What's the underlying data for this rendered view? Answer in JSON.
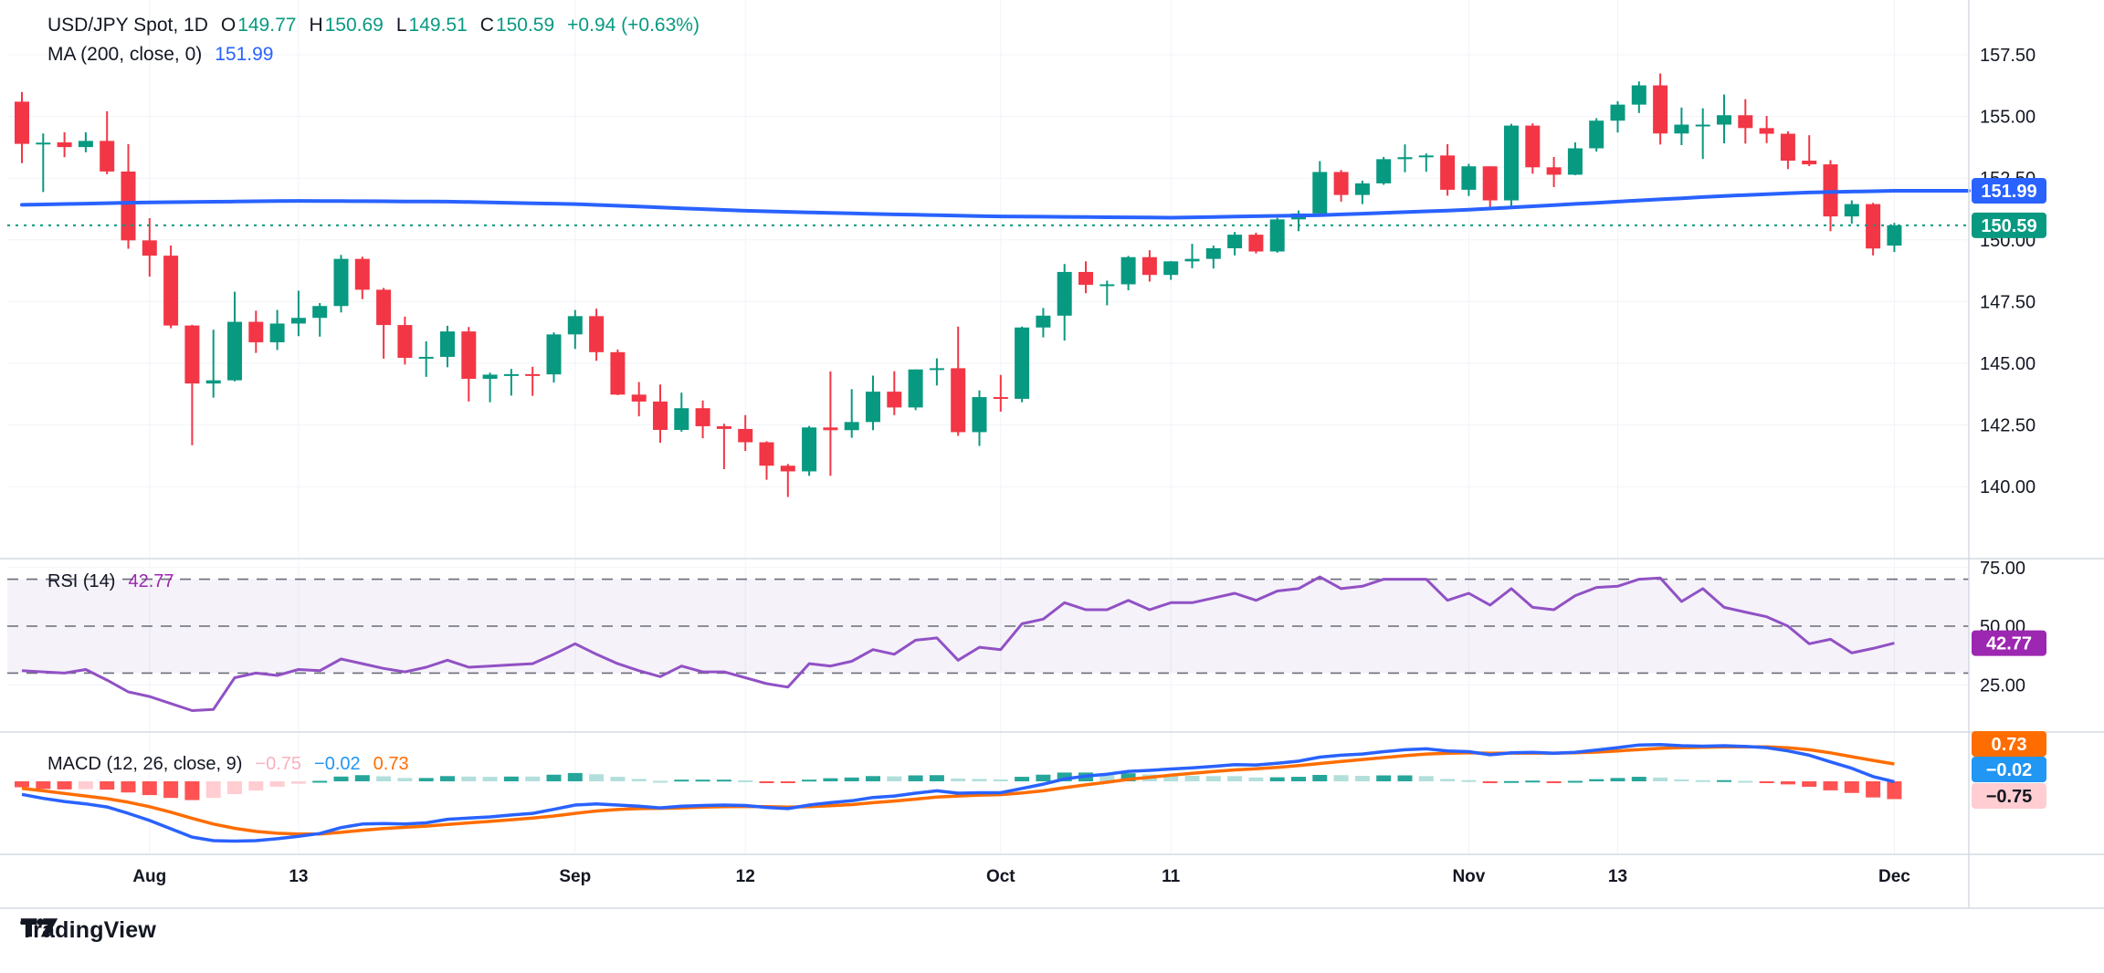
{
  "header": {
    "symbol_title": "USD/JPY Spot, 1D",
    "o_label": "O",
    "o_value": "149.77",
    "h_label": "H",
    "h_value": "150.69",
    "l_label": "L",
    "l_value": "149.51",
    "c_label": "C",
    "c_value": "150.59",
    "change_text": "+0.94 (+0.63%)",
    "ma_label": "MA (200, close, 0)",
    "ma_value": "151.99",
    "rsi_label": "RSI (14)",
    "rsi_value": "42.77",
    "macd_label": "MACD (12, 26, close, 9)",
    "macd_hist_value": "−0.75",
    "macd_line_value": "−0.02",
    "macd_signal_value": "0.73"
  },
  "branding": {
    "logo_text": "TradingView"
  },
  "colors": {
    "up": "#089981",
    "down": "#F23645",
    "ma_line": "#2962FF",
    "close_dotted": "#089981",
    "rsi_line": "#9151C4",
    "rsi_badge": "#9C27B0",
    "rsi_band": "rgba(126,87,194,0.08)",
    "rsi_dash": "#6A6D78",
    "macd_line": "#2962FF",
    "signal_line": "#FF6D00",
    "hist_pos_grow": "#26A69A",
    "hist_pos_fall": "#B2DFDB",
    "hist_neg_fall": "#FF5252",
    "hist_neg_grow": "#FFCDD2",
    "grid": "#F0F3FA",
    "separator": "#D6DAE3",
    "axis_text": "#131722",
    "badge_ma_bg": "#2962FF",
    "badge_close_bg": "#089981",
    "badge_macd_blue_bg": "#2196F3",
    "badge_signal_bg": "#FF6D00",
    "badge_hist_bg": "#FFCDD2",
    "legend_pink": "#FBB1BC",
    "legend_blue": "#2196F3",
    "legend_orange": "#FF6D00",
    "value_green": "#089981",
    "value_ma_blue": "#2962FF",
    "value_purple": "#9C27B0"
  },
  "chart_data": {
    "type": "candlestick",
    "title": "USD/JPY Spot, 1D",
    "interval": "1D",
    "legend_position": "top-left",
    "grid": true,
    "price_axis": {
      "labels": [
        "157.50",
        "155.00",
        "152.50",
        "150.00",
        "147.50",
        "145.00",
        "142.50",
        "140.00"
      ],
      "values": [
        157.5,
        155.0,
        152.5,
        150.0,
        147.5,
        145.0,
        142.5,
        140.0
      ],
      "ylim": [
        138.0,
        158.5
      ]
    },
    "rsi_axis": {
      "labels": [
        "75.00",
        "50.00",
        "25.00"
      ],
      "values": [
        75,
        50,
        25
      ],
      "bands": [
        70,
        50,
        30
      ],
      "ylim": [
        15,
        85
      ]
    },
    "time_ticks": [
      {
        "label": "Aug",
        "index": 6
      },
      {
        "label": "13",
        "index": 13
      },
      {
        "label": "Sep",
        "index": 26
      },
      {
        "label": "12",
        "index": 34
      },
      {
        "label": "Oct",
        "index": 46
      },
      {
        "label": "11",
        "index": 54
      },
      {
        "label": "Nov",
        "index": 68
      },
      {
        "label": "13",
        "index": 75
      },
      {
        "label": "Dec",
        "index": 88
      }
    ],
    "candles_ohlc": [
      [
        155.6,
        155.99,
        153.11,
        153.89
      ],
      [
        153.89,
        154.31,
        151.94,
        153.94
      ],
      [
        153.95,
        154.36,
        153.35,
        153.76
      ],
      [
        153.76,
        154.36,
        153.55,
        154.01
      ],
      [
        154.01,
        155.21,
        152.66,
        152.77
      ],
      [
        152.77,
        153.88,
        149.64,
        149.98
      ],
      [
        149.98,
        150.88,
        148.51,
        149.36
      ],
      [
        149.36,
        149.77,
        146.42,
        146.53
      ],
      [
        146.53,
        146.56,
        141.68,
        144.18
      ],
      [
        144.18,
        146.36,
        143.61,
        144.31
      ],
      [
        144.31,
        147.9,
        144.27,
        146.68
      ],
      [
        146.68,
        147.13,
        145.42,
        145.85
      ],
      [
        145.85,
        147.16,
        145.54,
        146.61
      ],
      [
        146.61,
        147.94,
        146.1,
        146.84
      ],
      [
        146.84,
        147.44,
        146.08,
        147.32
      ],
      [
        147.32,
        149.39,
        147.06,
        149.23
      ],
      [
        149.23,
        149.32,
        147.6,
        147.98
      ],
      [
        147.98,
        148.05,
        145.19,
        146.55
      ],
      [
        146.55,
        146.89,
        144.95,
        145.22
      ],
      [
        145.22,
        145.89,
        144.45,
        145.26
      ],
      [
        145.26,
        146.52,
        144.84,
        146.29
      ],
      [
        146.29,
        146.47,
        143.45,
        144.37
      ],
      [
        144.37,
        144.62,
        143.42,
        144.54
      ],
      [
        144.54,
        144.77,
        143.69,
        144.56
      ],
      [
        144.56,
        144.86,
        143.68,
        144.55
      ],
      [
        144.55,
        146.25,
        144.22,
        146.17
      ],
      [
        146.17,
        147.16,
        145.58,
        146.91
      ],
      [
        146.91,
        147.21,
        145.1,
        145.45
      ],
      [
        145.45,
        145.56,
        143.71,
        143.73
      ],
      [
        143.73,
        144.24,
        142.85,
        143.45
      ],
      [
        143.45,
        144.14,
        141.78,
        142.3
      ],
      [
        142.3,
        143.81,
        142.23,
        143.18
      ],
      [
        143.18,
        143.49,
        141.96,
        142.45
      ],
      [
        142.45,
        142.55,
        140.71,
        142.34
      ],
      [
        142.34,
        142.9,
        141.45,
        141.8
      ],
      [
        141.8,
        141.84,
        140.28,
        140.85
      ],
      [
        140.85,
        140.92,
        139.58,
        140.62
      ],
      [
        140.62,
        142.46,
        140.44,
        142.4
      ],
      [
        142.4,
        144.67,
        140.44,
        142.29
      ],
      [
        142.29,
        143.95,
        141.98,
        142.62
      ],
      [
        142.62,
        144.5,
        142.29,
        143.85
      ],
      [
        143.85,
        144.68,
        142.9,
        143.21
      ],
      [
        143.21,
        144.75,
        143.1,
        144.75
      ],
      [
        144.75,
        145.2,
        144.1,
        144.8
      ],
      [
        144.8,
        146.49,
        142.06,
        142.21
      ],
      [
        142.21,
        143.9,
        141.65,
        143.63
      ],
      [
        143.63,
        144.53,
        143.04,
        143.56
      ],
      [
        143.56,
        146.49,
        143.42,
        146.45
      ],
      [
        146.45,
        147.24,
        146.05,
        146.93
      ],
      [
        146.93,
        149.02,
        145.92,
        148.7
      ],
      [
        148.7,
        149.13,
        147.84,
        148.18
      ],
      [
        148.18,
        148.35,
        147.35,
        148.2
      ],
      [
        148.2,
        149.35,
        147.96,
        149.3
      ],
      [
        149.3,
        149.58,
        148.31,
        148.58
      ],
      [
        148.58,
        149.14,
        148.38,
        149.13
      ],
      [
        149.13,
        149.84,
        148.85,
        149.23
      ],
      [
        149.23,
        149.77,
        148.84,
        149.66
      ],
      [
        149.66,
        150.32,
        149.37,
        150.21
      ],
      [
        150.21,
        150.29,
        149.45,
        149.53
      ],
      [
        149.53,
        150.89,
        149.48,
        150.83
      ],
      [
        150.83,
        151.19,
        150.35,
        151.07
      ],
      [
        151.07,
        153.19,
        151.0,
        152.75
      ],
      [
        152.75,
        152.83,
        151.55,
        151.82
      ],
      [
        151.82,
        152.4,
        151.45,
        152.29
      ],
      [
        152.29,
        153.36,
        152.23,
        153.27
      ],
      [
        153.27,
        153.87,
        152.74,
        153.35
      ],
      [
        153.35,
        153.5,
        152.76,
        153.42
      ],
      [
        153.42,
        153.88,
        151.79,
        152.03
      ],
      [
        152.03,
        153.08,
        151.78,
        152.98
      ],
      [
        152.98,
        152.98,
        151.27,
        151.6
      ],
      [
        151.6,
        154.7,
        151.29,
        154.63
      ],
      [
        154.63,
        154.72,
        152.68,
        152.94
      ],
      [
        152.94,
        153.36,
        152.14,
        152.64
      ],
      [
        152.64,
        153.95,
        152.62,
        153.71
      ],
      [
        153.71,
        154.93,
        153.58,
        154.83
      ],
      [
        154.83,
        155.62,
        154.35,
        155.48
      ],
      [
        155.48,
        156.42,
        155.14,
        156.26
      ],
      [
        156.26,
        156.74,
        153.86,
        154.31
      ],
      [
        154.31,
        155.36,
        153.84,
        154.67
      ],
      [
        154.67,
        155.33,
        153.28,
        154.67
      ],
      [
        154.67,
        155.89,
        153.91,
        155.05
      ],
      [
        155.05,
        155.7,
        153.9,
        154.53
      ],
      [
        154.53,
        155.02,
        153.92,
        154.3
      ],
      [
        154.3,
        154.4,
        152.87,
        153.21
      ],
      [
        153.21,
        154.24,
        152.99,
        153.06
      ],
      [
        153.06,
        153.23,
        150.35,
        150.95
      ],
      [
        150.95,
        151.6,
        150.66,
        151.45
      ],
      [
        151.45,
        151.5,
        149.37,
        149.65
      ],
      [
        149.77,
        150.69,
        149.51,
        150.59
      ]
    ],
    "ma200_anchors": [
      [
        0,
        151.42
      ],
      [
        6,
        151.52
      ],
      [
        13,
        151.58
      ],
      [
        20,
        151.55
      ],
      [
        26,
        151.45
      ],
      [
        34,
        151.18
      ],
      [
        40,
        151.05
      ],
      [
        46,
        150.95
      ],
      [
        54,
        150.9
      ],
      [
        61,
        151.0
      ],
      [
        68,
        151.22
      ],
      [
        75,
        151.55
      ],
      [
        80,
        151.78
      ],
      [
        84,
        151.92
      ],
      [
        88,
        151.99
      ]
    ],
    "ma200_last": 151.99,
    "close_line_value": 150.59,
    "rsi14": [
      31,
      30.5,
      30,
      31.5,
      27,
      22,
      20,
      17,
      14,
      14.5,
      28,
      30,
      29,
      31.5,
      31,
      36,
      34,
      32,
      30.5,
      32.5,
      35.5,
      32.5,
      33,
      33.5,
      34,
      38,
      42.5,
      38,
      34,
      31,
      28.5,
      33,
      30.5,
      30.5,
      28,
      25.5,
      24,
      34,
      33,
      35,
      40,
      38,
      44,
      45,
      35.5,
      41,
      40,
      51,
      53,
      60,
      57,
      57,
      61,
      57,
      60,
      60,
      62,
      64,
      61,
      65,
      66,
      71,
      66,
      67,
      70,
      70,
      70,
      61,
      64,
      59,
      66,
      58,
      57,
      63,
      66.5,
      67,
      70,
      70.5,
      60.5,
      66,
      58,
      56,
      54,
      50,
      42.5,
      44.4,
      38.6,
      40.5,
      42.77
    ],
    "rsi_last": 42.77,
    "macd": {
      "macd_line": [
        -0.55,
        -0.72,
        -0.85,
        -0.95,
        -1.08,
        -1.35,
        -1.65,
        -2.0,
        -2.35,
        -2.5,
        -2.52,
        -2.5,
        -2.42,
        -2.32,
        -2.2,
        -1.95,
        -1.8,
        -1.78,
        -1.8,
        -1.75,
        -1.6,
        -1.55,
        -1.5,
        -1.42,
        -1.35,
        -1.18,
        -1.0,
        -0.95,
        -1.0,
        -1.05,
        -1.12,
        -1.05,
        -1.02,
        -1.0,
        -1.02,
        -1.1,
        -1.15,
        -1.0,
        -0.9,
        -0.82,
        -0.68,
        -0.62,
        -0.5,
        -0.4,
        -0.5,
        -0.48,
        -0.48,
        -0.3,
        -0.12,
        0.1,
        0.22,
        0.3,
        0.42,
        0.46,
        0.52,
        0.57,
        0.63,
        0.7,
        0.69,
        0.76,
        0.85,
        1.02,
        1.1,
        1.15,
        1.25,
        1.33,
        1.37,
        1.28,
        1.25,
        1.12,
        1.2,
        1.22,
        1.18,
        1.22,
        1.32,
        1.42,
        1.53,
        1.55,
        1.5,
        1.48,
        1.5,
        1.47,
        1.42,
        1.28,
        1.1,
        0.82,
        0.55,
        0.2,
        -0.02
      ],
      "signal_line": [
        -0.3,
        -0.4,
        -0.51,
        -0.62,
        -0.73,
        -0.88,
        -1.07,
        -1.3,
        -1.56,
        -1.8,
        -1.98,
        -2.11,
        -2.19,
        -2.22,
        -2.22,
        -2.15,
        -2.06,
        -1.99,
        -1.94,
        -1.89,
        -1.82,
        -1.75,
        -1.69,
        -1.62,
        -1.55,
        -1.46,
        -1.35,
        -1.25,
        -1.19,
        -1.15,
        -1.14,
        -1.12,
        -1.09,
        -1.07,
        -1.06,
        -1.07,
        -1.09,
        -1.07,
        -1.03,
        -0.98,
        -0.9,
        -0.83,
        -0.75,
        -0.66,
        -0.62,
        -0.58,
        -0.56,
        -0.49,
        -0.4,
        -0.27,
        -0.15,
        -0.04,
        0.08,
        0.17,
        0.26,
        0.34,
        0.41,
        0.48,
        0.53,
        0.59,
        0.66,
        0.75,
        0.84,
        0.92,
        1.0,
        1.08,
        1.15,
        1.18,
        1.2,
        1.18,
        1.19,
        1.19,
        1.19,
        1.2,
        1.23,
        1.28,
        1.34,
        1.39,
        1.42,
        1.43,
        1.45,
        1.45,
        1.45,
        1.41,
        1.33,
        1.2,
        1.04,
        0.88,
        0.73
      ],
      "last_hist": -0.75,
      "last_macd": -0.02,
      "last_signal": 0.73
    },
    "axis_badges": {
      "ma": "151.99",
      "close": "150.59",
      "rsi": "42.77",
      "macd_signal": "0.73",
      "macd_line": "−0.02",
      "macd_hist": "−0.75"
    }
  }
}
